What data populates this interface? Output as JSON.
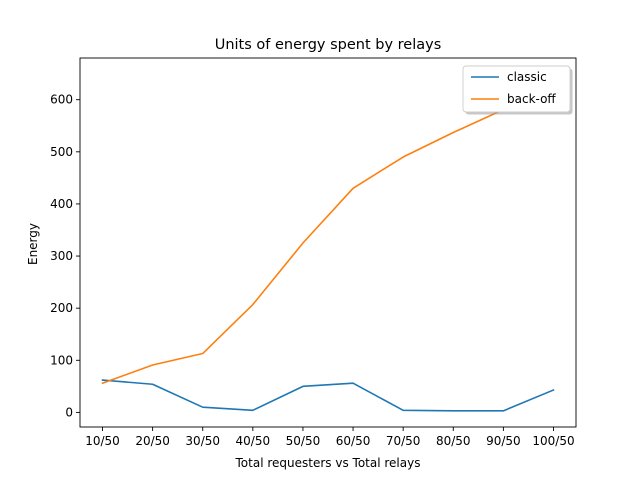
{
  "chart_data": {
    "type": "line",
    "title": "Units of energy spent by relays",
    "xlabel": "Total requesters vs Total relays",
    "ylabel": "Energy",
    "categories": [
      "10/50",
      "20/50",
      "30/50",
      "40/50",
      "50/50",
      "60/50",
      "70/50",
      "80/50",
      "90/50",
      "100/50"
    ],
    "ylim": [
      -28,
      680
    ],
    "yticks": [
      0,
      100,
      200,
      300,
      400,
      500,
      600
    ],
    "grid": false,
    "legend_position": "top-right",
    "series": [
      {
        "name": "classic",
        "color": "#1f77b4",
        "values": [
          62,
          54,
          10,
          4,
          50,
          56,
          4,
          3,
          3,
          43
        ]
      },
      {
        "name": "back-off",
        "color": "#ff7f0e",
        "values": [
          56,
          91,
          113,
          207,
          325,
          430,
          490,
          537,
          581,
          627
        ]
      }
    ]
  }
}
